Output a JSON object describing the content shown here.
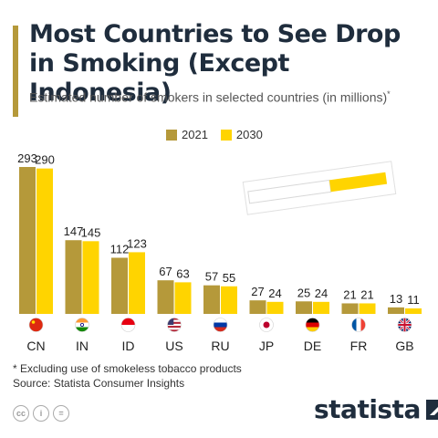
{
  "header": {
    "title": "Most Countries to See Drop in Smoking (Except Indonesia)",
    "subtitle": "Estimated number of smokers in selected countries (in millions)",
    "subtitle_mark": "*"
  },
  "colors": {
    "series_2021": "#b5993a",
    "series_2030": "#ffd400",
    "title": "#1f2d3d"
  },
  "chart_data": {
    "type": "bar",
    "categories": [
      "CN",
      "IN",
      "ID",
      "US",
      "RU",
      "JP",
      "DE",
      "FR",
      "GB"
    ],
    "series": [
      {
        "name": "2021",
        "values": [
          293,
          147,
          112,
          67,
          57,
          27,
          25,
          21,
          13
        ]
      },
      {
        "name": "2030",
        "values": [
          290,
          145,
          123,
          63,
          55,
          24,
          24,
          21,
          11
        ]
      }
    ],
    "flags": [
      "china-flag-icon",
      "india-flag-icon",
      "indonesia-flag-icon",
      "usa-flag-icon",
      "russia-flag-icon",
      "japan-flag-icon",
      "germany-flag-icon",
      "france-flag-icon",
      "uk-flag-icon"
    ],
    "legend_position": "top",
    "grid": false
  },
  "footer": {
    "note": "* Excluding use of smokeless tobacco products",
    "source": "Source: Statista Consumer Insights",
    "brand": "statista"
  }
}
